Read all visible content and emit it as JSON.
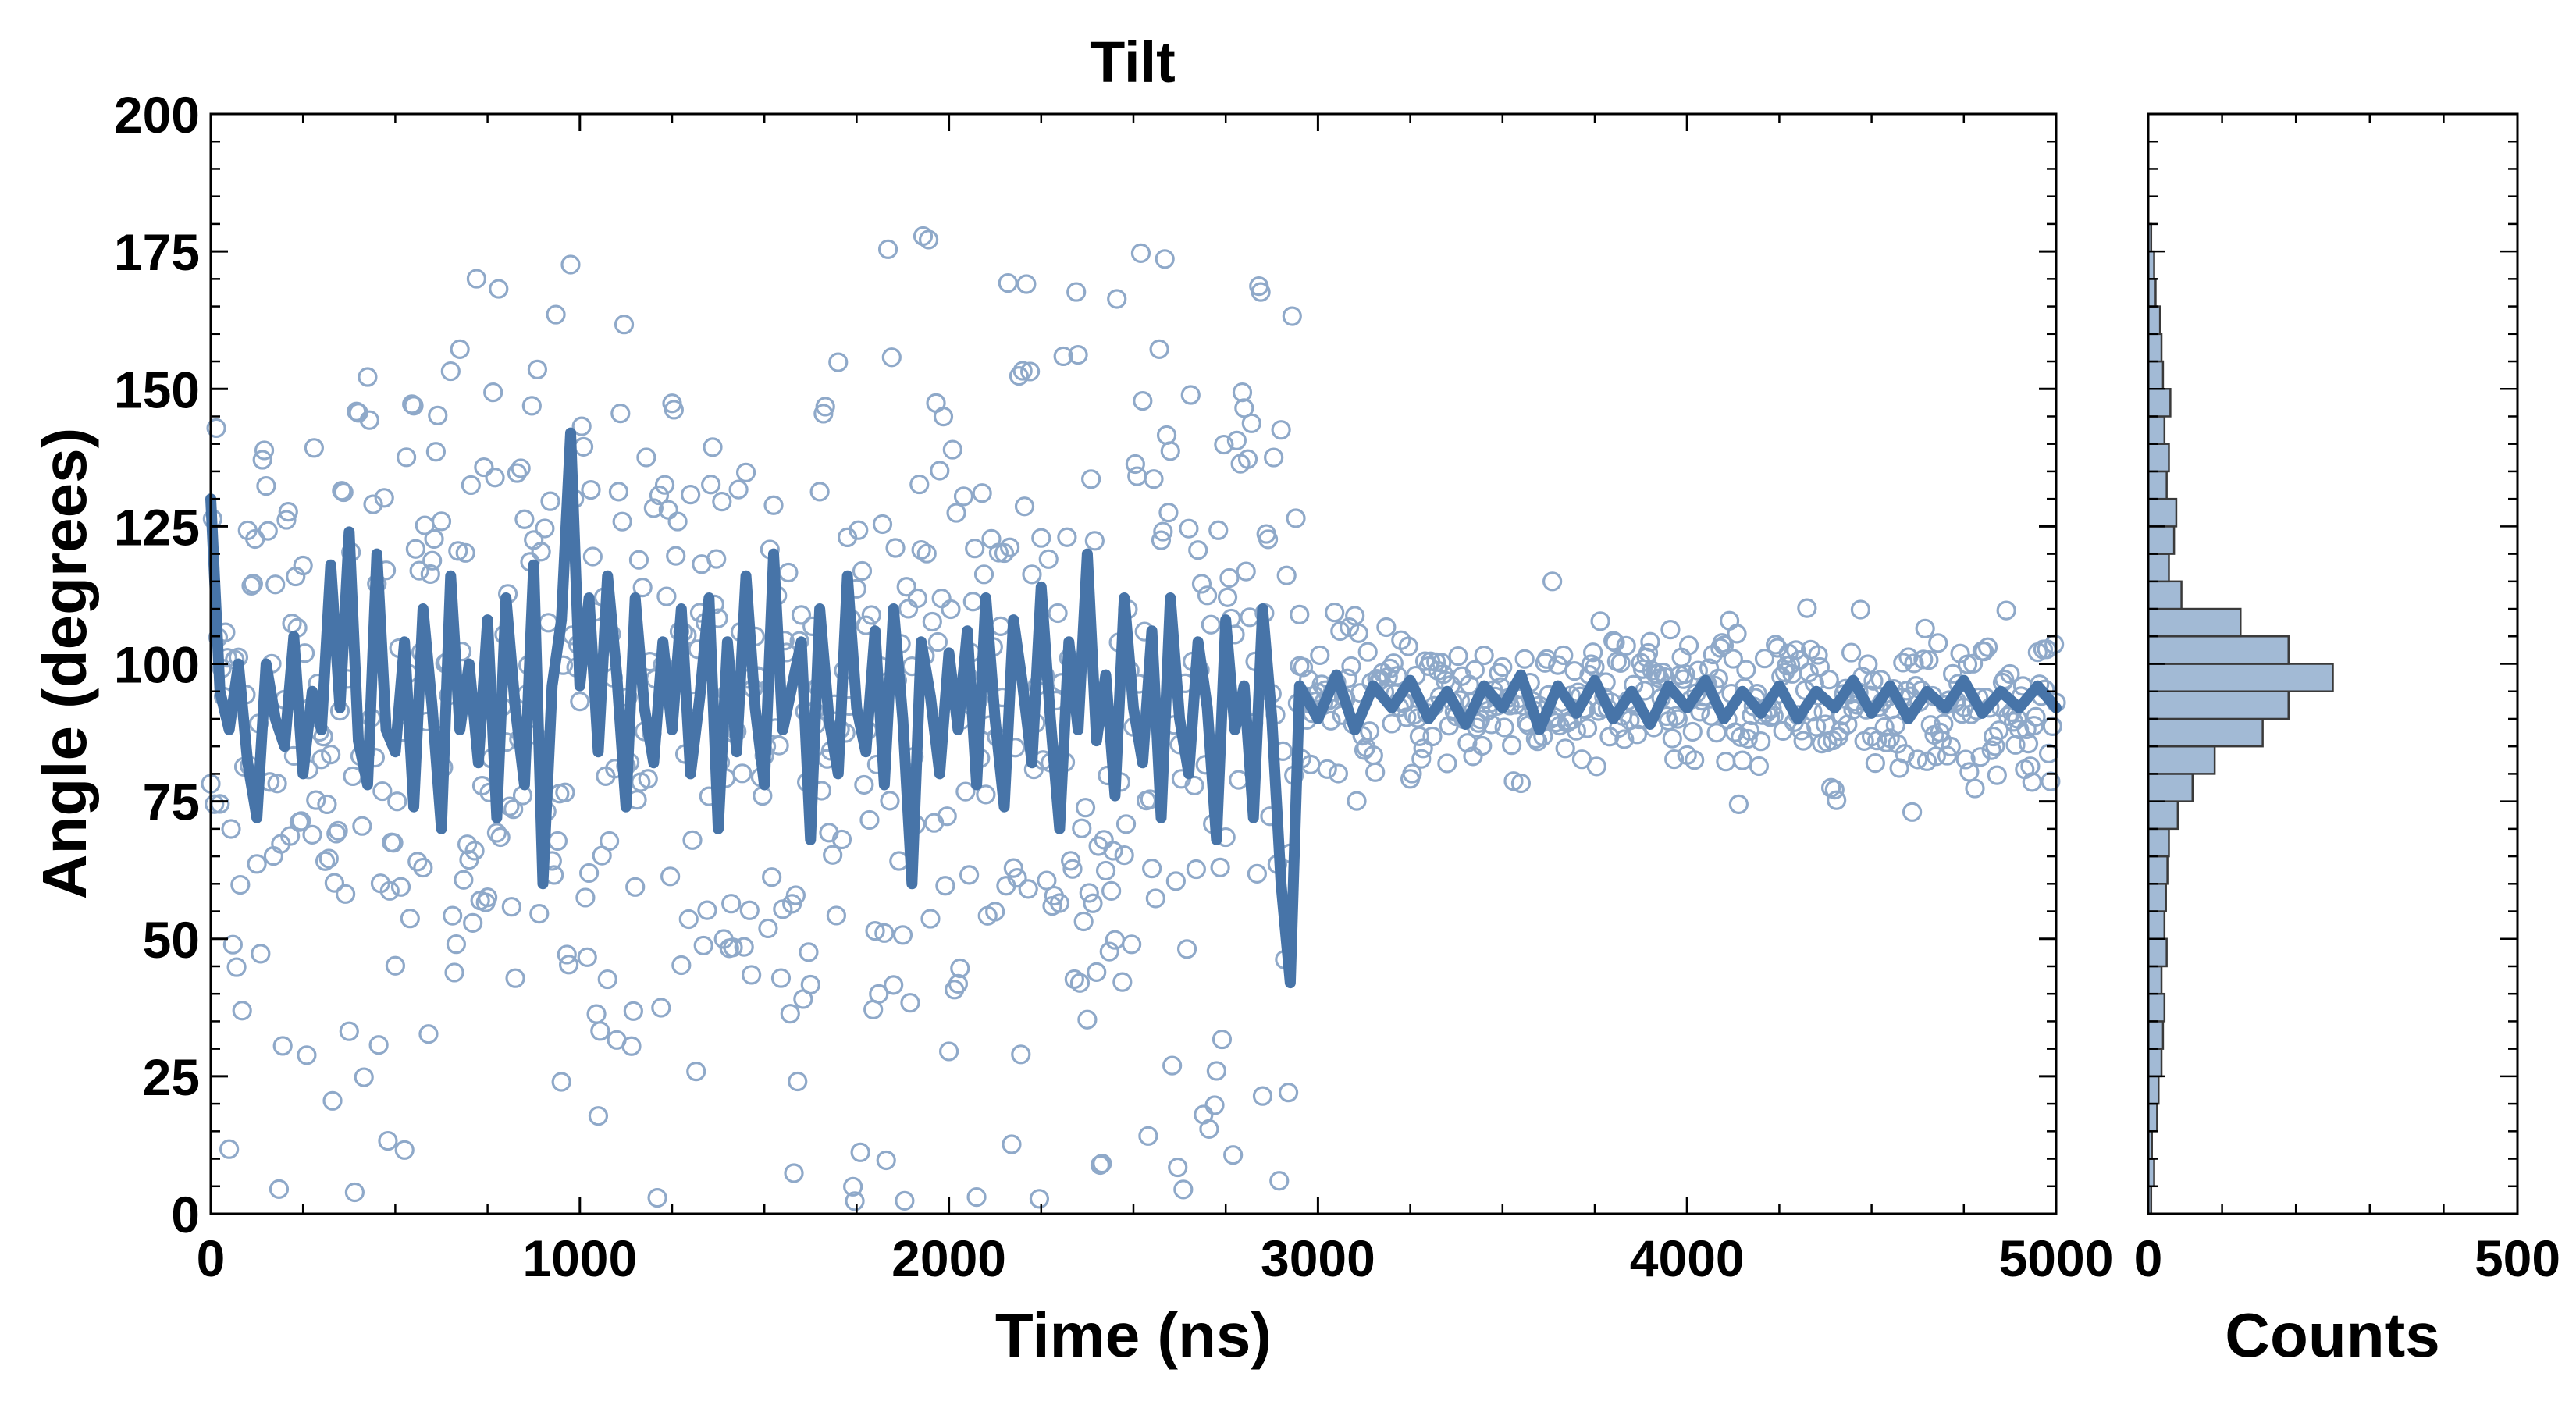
{
  "colors": {
    "series": "#4774a8",
    "scatter_stroke": "#8fa9c9",
    "hist_fill": "#a2bad5",
    "hist_edge": "#3a3a3a",
    "axes": "#000000"
  },
  "chart_data": [
    {
      "type": "scatter",
      "title": "Tilt",
      "xlabel": "Time (ns)",
      "ylabel": "Angle (degrees)",
      "xlim": [
        0,
        5000
      ],
      "ylim": [
        0,
        200
      ],
      "xticks": [
        "0",
        "1000",
        "2000",
        "3000",
        "4000",
        "5000"
      ],
      "yticks": [
        "0",
        "25",
        "50",
        "75",
        "100",
        "125",
        "150",
        "175",
        "200"
      ],
      "grid": false,
      "legend": "none",
      "series": [
        {
          "kind": "scatter",
          "marker": "open-circle",
          "description_regime_1": {
            "x_range": [
              0,
              2950
            ],
            "y_center": 90,
            "y_spread": [
              0,
              178
            ]
          },
          "description_regime_2": {
            "x_range": [
              2950,
              5000
            ],
            "y_center": 93,
            "y_spread": [
              70,
              115
            ]
          }
        },
        {
          "kind": "line",
          "description": "running average",
          "points": [
            [
              0,
              130
            ],
            [
              25,
              95
            ],
            [
              50,
              88
            ],
            [
              75,
              100
            ],
            [
              100,
              82
            ],
            [
              125,
              72
            ],
            [
              150,
              100
            ],
            [
              175,
              90
            ],
            [
              200,
              85
            ],
            [
              225,
              105
            ],
            [
              250,
              80
            ],
            [
              275,
              95
            ],
            [
              300,
              88
            ],
            [
              325,
              118
            ],
            [
              350,
              92
            ],
            [
              375,
              124
            ],
            [
              400,
              86
            ],
            [
              425,
              78
            ],
            [
              450,
              120
            ],
            [
              475,
              88
            ],
            [
              500,
              84
            ],
            [
              525,
              104
            ],
            [
              550,
              74
            ],
            [
              575,
              110
            ],
            [
              600,
              92
            ],
            [
              625,
              70
            ],
            [
              650,
              116
            ],
            [
              675,
              88
            ],
            [
              700,
              100
            ],
            [
              725,
              82
            ],
            [
              750,
              108
            ],
            [
              775,
              72
            ],
            [
              800,
              112
            ],
            [
              825,
              92
            ],
            [
              850,
              78
            ],
            [
              875,
              118
            ],
            [
              900,
              60
            ],
            [
              925,
              96
            ],
            [
              950,
              108
            ],
            [
              975,
              142
            ],
            [
              1000,
              96
            ],
            [
              1025,
              112
            ],
            [
              1050,
              84
            ],
            [
              1075,
              116
            ],
            [
              1100,
              98
            ],
            [
              1125,
              74
            ],
            [
              1150,
              112
            ],
            [
              1175,
              92
            ],
            [
              1200,
              82
            ],
            [
              1225,
              104
            ],
            [
              1250,
              88
            ],
            [
              1275,
              110
            ],
            [
              1300,
              80
            ],
            [
              1325,
              94
            ],
            [
              1350,
              112
            ],
            [
              1375,
              70
            ],
            [
              1400,
              104
            ],
            [
              1425,
              84
            ],
            [
              1450,
              116
            ],
            [
              1475,
              92
            ],
            [
              1500,
              78
            ],
            [
              1525,
              120
            ],
            [
              1550,
              88
            ],
            [
              1575,
              96
            ],
            [
              1600,
              104
            ],
            [
              1625,
              68
            ],
            [
              1650,
              110
            ],
            [
              1675,
              90
            ],
            [
              1700,
              80
            ],
            [
              1725,
              116
            ],
            [
              1750,
              92
            ],
            [
              1775,
              84
            ],
            [
              1800,
              106
            ],
            [
              1825,
              78
            ],
            [
              1850,
              110
            ],
            [
              1875,
              90
            ],
            [
              1900,
              60
            ],
            [
              1925,
              104
            ],
            [
              1950,
              94
            ],
            [
              1975,
              80
            ],
            [
              2000,
              102
            ],
            [
              2025,
              88
            ],
            [
              2050,
              106
            ],
            [
              2075,
              78
            ],
            [
              2100,
              112
            ],
            [
              2125,
              90
            ],
            [
              2150,
              74
            ],
            [
              2175,
              108
            ],
            [
              2200,
              96
            ],
            [
              2225,
              82
            ],
            [
              2250,
              114
            ],
            [
              2275,
              90
            ],
            [
              2300,
              70
            ],
            [
              2325,
              104
            ],
            [
              2350,
              88
            ],
            [
              2375,
              120
            ],
            [
              2400,
              86
            ],
            [
              2425,
              98
            ],
            [
              2450,
              76
            ],
            [
              2475,
              112
            ],
            [
              2500,
              92
            ],
            [
              2525,
              82
            ],
            [
              2550,
              106
            ],
            [
              2575,
              72
            ],
            [
              2600,
              112
            ],
            [
              2625,
              90
            ],
            [
              2650,
              80
            ],
            [
              2675,
              104
            ],
            [
              2700,
              92
            ],
            [
              2725,
              68
            ],
            [
              2750,
              108
            ],
            [
              2775,
              88
            ],
            [
              2800,
              96
            ],
            [
              2825,
              72
            ],
            [
              2850,
              110
            ],
            [
              2875,
              90
            ],
            [
              2900,
              60
            ],
            [
              2925,
              42
            ],
            [
              2950,
              96
            ],
            [
              3000,
              90
            ],
            [
              3050,
              98
            ],
            [
              3100,
              88
            ],
            [
              3150,
              96
            ],
            [
              3200,
              92
            ],
            [
              3250,
              97
            ],
            [
              3300,
              90
            ],
            [
              3350,
              95
            ],
            [
              3400,
              89
            ],
            [
              3450,
              96
            ],
            [
              3500,
              92
            ],
            [
              3550,
              98
            ],
            [
              3600,
              88
            ],
            [
              3650,
              96
            ],
            [
              3700,
              91
            ],
            [
              3750,
              97
            ],
            [
              3800,
              90
            ],
            [
              3850,
              95
            ],
            [
              3900,
              89
            ],
            [
              3950,
              96
            ],
            [
              4000,
              92
            ],
            [
              4050,
              97
            ],
            [
              4100,
              90
            ],
            [
              4150,
              95
            ],
            [
              4200,
              91
            ],
            [
              4250,
              96
            ],
            [
              4300,
              90
            ],
            [
              4350,
              95
            ],
            [
              4400,
              92
            ],
            [
              4450,
              97
            ],
            [
              4500,
              91
            ],
            [
              4550,
              96
            ],
            [
              4600,
              90
            ],
            [
              4650,
              95
            ],
            [
              4700,
              92
            ],
            [
              4750,
              97
            ],
            [
              4800,
              91
            ],
            [
              4850,
              95
            ],
            [
              4900,
              92
            ],
            [
              4950,
              96
            ],
            [
              5000,
              92
            ]
          ]
        }
      ]
    },
    {
      "type": "bar",
      "orientation": "horizontal",
      "xlabel": "Counts",
      "xlim": [
        0,
        500
      ],
      "ylim": [
        0,
        200
      ],
      "xticks": [
        "0",
        "500"
      ],
      "bin_width": 5,
      "bins": [
        [
          0,
          4
        ],
        [
          5,
          8
        ],
        [
          10,
          5
        ],
        [
          15,
          12
        ],
        [
          20,
          14
        ],
        [
          25,
          18
        ],
        [
          30,
          20
        ],
        [
          35,
          22
        ],
        [
          40,
          18
        ],
        [
          45,
          25
        ],
        [
          50,
          22
        ],
        [
          55,
          24
        ],
        [
          60,
          26
        ],
        [
          65,
          28
        ],
        [
          70,
          40
        ],
        [
          75,
          60
        ],
        [
          80,
          90
        ],
        [
          85,
          155
        ],
        [
          90,
          190
        ],
        [
          95,
          250
        ],
        [
          100,
          190
        ],
        [
          105,
          125
        ],
        [
          110,
          45
        ],
        [
          115,
          28
        ],
        [
          120,
          35
        ],
        [
          125,
          38
        ],
        [
          130,
          25
        ],
        [
          135,
          28
        ],
        [
          140,
          22
        ],
        [
          145,
          30
        ],
        [
          150,
          20
        ],
        [
          155,
          18
        ],
        [
          160,
          16
        ],
        [
          165,
          10
        ],
        [
          170,
          8
        ],
        [
          175,
          4
        ]
      ]
    }
  ]
}
